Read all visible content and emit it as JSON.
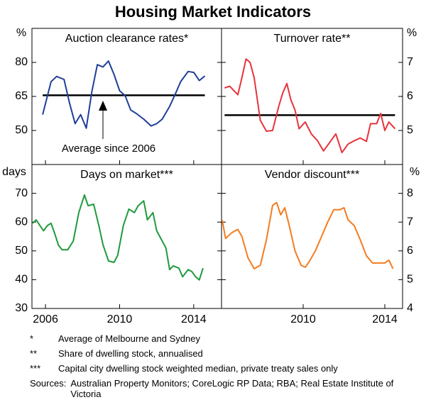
{
  "title": "Housing Market Indicators",
  "chart_data": [
    {
      "type": "line",
      "title": "Auction clearance rates*",
      "y_unit": "%",
      "yaxis_side": "left",
      "color": "#1f3f99",
      "x": [
        2005.85,
        2006.3,
        2006.6,
        2007.0,
        2007.3,
        2007.6,
        2007.9,
        2008.2,
        2008.5,
        2008.8,
        2009.1,
        2009.4,
        2009.7,
        2010.0,
        2010.3,
        2010.6,
        2010.9,
        2011.3,
        2011.7,
        2012.0,
        2012.3,
        2012.7,
        2013.0,
        2013.3,
        2013.7,
        2014.0,
        2014.3,
        2014.6
      ],
      "values": [
        57,
        71.5,
        73.8,
        72.5,
        62,
        53,
        57,
        51,
        67,
        79,
        78,
        80.6,
        74.7,
        67.5,
        65.3,
        59,
        57.5,
        55,
        52,
        53,
        55,
        60.6,
        66,
        71.6,
        76,
        75.6,
        72,
        74
      ],
      "average": 65.5,
      "annotation": "Average since 2006",
      "xlim": [
        2005.27,
        2015.5
      ],
      "xticks": [
        2006,
        2010,
        2014
      ],
      "show_xtick_labels": false,
      "ylim": [
        35,
        95
      ],
      "yticks": [
        50,
        65,
        80
      ]
    },
    {
      "type": "line",
      "title": "Turnover rate**",
      "y_unit": "%",
      "yaxis_side": "right",
      "color": "#e8333c",
      "x": [
        2006.15,
        2006.4,
        2006.8,
        2007.0,
        2007.2,
        2007.4,
        2007.6,
        2007.9,
        2008.2,
        2008.5,
        2008.8,
        2009.0,
        2009.2,
        2009.4,
        2009.6,
        2009.8,
        2010.1,
        2010.4,
        2010.7,
        2011.0,
        2011.3,
        2011.6,
        2011.9,
        2012.2,
        2012.5,
        2012.8,
        2013.1,
        2013.3,
        2013.6,
        2013.8,
        2014.0,
        2014.2,
        2014.5
      ],
      "values": [
        6.25,
        6.3,
        6.05,
        6.55,
        7.1,
        7.0,
        6.55,
        5.3,
        4.98,
        5.0,
        5.7,
        6.1,
        6.38,
        5.9,
        5.6,
        5.05,
        5.25,
        4.9,
        4.7,
        4.4,
        4.65,
        4.9,
        4.35,
        4.6,
        4.7,
        4.78,
        4.68,
        5.2,
        5.2,
        5.5,
        5.0,
        5.25,
        5.05
      ],
      "average": 5.45,
      "xlim": [
        2006.0,
        2014.87
      ],
      "xticks": [
        2010,
        2014
      ],
      "show_xtick_labels": false,
      "ylim": [
        4,
        8
      ],
      "yticks": [
        5,
        6,
        7
      ]
    },
    {
      "type": "line",
      "title": "Days on market***",
      "y_unit": "days",
      "yaxis_side": "left",
      "color": "#1f9a3c",
      "x": [
        2005.3,
        2005.5,
        2005.7,
        2005.9,
        2006.1,
        2006.3,
        2006.5,
        2006.7,
        2006.9,
        2007.2,
        2007.5,
        2007.8,
        2008.1,
        2008.3,
        2008.6,
        2008.9,
        2009.1,
        2009.4,
        2009.7,
        2009.9,
        2010.2,
        2010.5,
        2010.8,
        2011.0,
        2011.3,
        2011.5,
        2011.8,
        2012.0,
        2012.3,
        2012.5,
        2012.7,
        2012.9,
        2013.2,
        2013.4,
        2013.7,
        2013.9,
        2014.1,
        2014.3,
        2014.5
      ],
      "values": [
        59.6,
        60.8,
        58.8,
        57,
        58.8,
        59.6,
        56,
        52,
        50.4,
        50.4,
        53.4,
        63.3,
        69.4,
        65.7,
        66.2,
        58.3,
        52.2,
        46.5,
        46,
        48.5,
        58.8,
        64.5,
        63.3,
        65.7,
        67.4,
        60.8,
        63.3,
        57,
        53.4,
        51,
        43.5,
        44.8,
        44,
        41,
        43.5,
        42.8,
        41,
        39.9,
        44
      ],
      "xlim": [
        2005.27,
        2015.5
      ],
      "xticks": [
        2006,
        2010,
        2014
      ],
      "show_xtick_labels": true,
      "ylim": [
        30,
        80
      ],
      "yticks": [
        30,
        40,
        50,
        60,
        70
      ]
    },
    {
      "type": "line",
      "title": "Vendor discount***",
      "y_unit": "%",
      "yaxis_side": "right",
      "color": "#f47c20",
      "x": [
        2006.03,
        2006.2,
        2006.5,
        2006.8,
        2007.0,
        2007.3,
        2007.6,
        2007.9,
        2008.2,
        2008.5,
        2008.7,
        2008.9,
        2009.1,
        2009.3,
        2009.6,
        2009.9,
        2010.1,
        2010.3,
        2010.6,
        2010.9,
        2011.2,
        2011.5,
        2011.8,
        2012.0,
        2012.2,
        2012.5,
        2012.8,
        2013.1,
        2013.4,
        2013.7,
        2014.0,
        2014.2,
        2014.4
      ],
      "values": [
        7.08,
        6.43,
        6.63,
        6.75,
        6.5,
        5.75,
        5.38,
        5.5,
        6.38,
        7.58,
        7.68,
        7.25,
        7.5,
        6.93,
        6.0,
        5.5,
        5.43,
        5.63,
        6.0,
        6.5,
        7.0,
        7.43,
        7.43,
        7.5,
        7.08,
        6.88,
        6.38,
        5.83,
        5.58,
        5.58,
        5.58,
        5.68,
        5.38
      ],
      "xlim": [
        2006.0,
        2014.87
      ],
      "xticks": [
        2010,
        2014
      ],
      "show_xtick_labels": true,
      "ylim": [
        4,
        9
      ],
      "yticks": [
        4,
        5,
        6,
        7,
        8
      ]
    }
  ],
  "notes": [
    {
      "marker": "*",
      "text": "Average of Melbourne and Sydney"
    },
    {
      "marker": "**",
      "text": "Share of dwelling stock, annualised"
    },
    {
      "marker": "***",
      "text": "Capital city dwelling stock weighted median, private treaty sales only"
    }
  ],
  "sources": {
    "label": "Sources:",
    "text": "Australian Property Monitors; CoreLogic RP Data; RBA; Real Estate Institute of Victoria"
  }
}
